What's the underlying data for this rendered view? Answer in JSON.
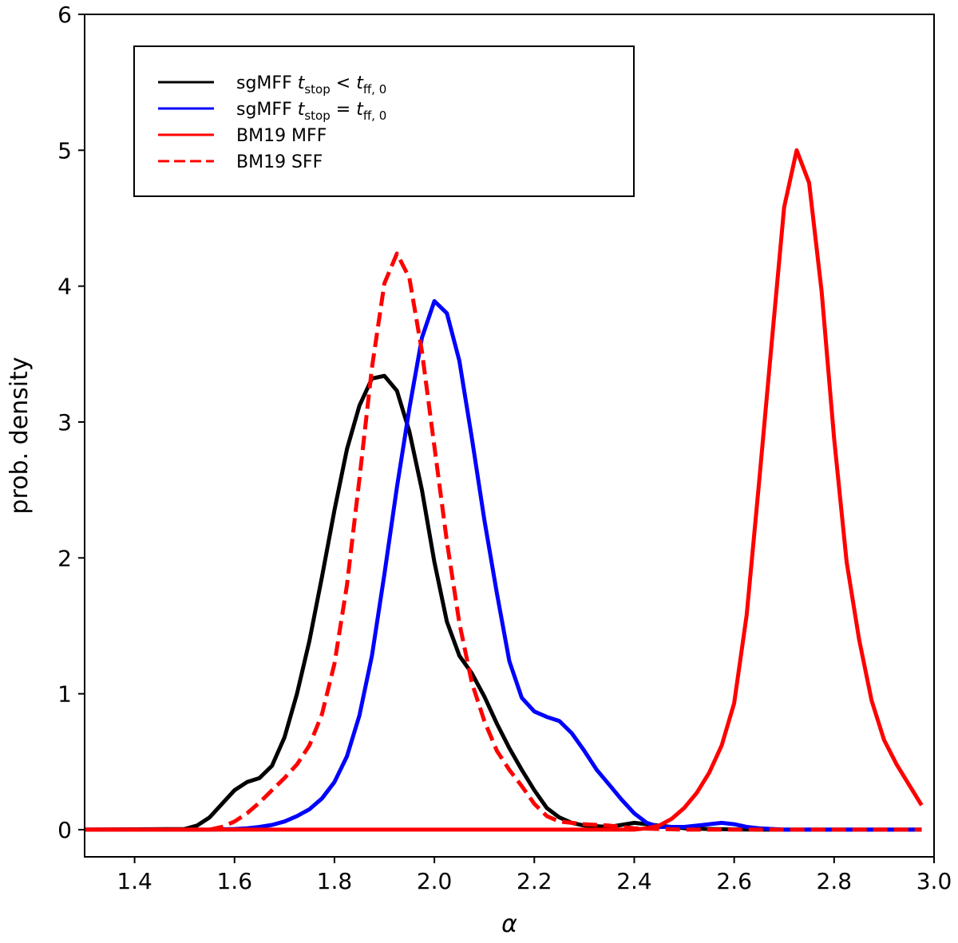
{
  "chart_data": {
    "type": "line",
    "title": "",
    "xlabel": "α",
    "ylabel": "prob. density",
    "xlim": [
      1.3,
      3.0
    ],
    "ylim": [
      -0.2,
      6.0
    ],
    "xticks": [
      1.4,
      1.6,
      1.8,
      2.0,
      2.2,
      2.4,
      2.6,
      2.8,
      3.0
    ],
    "xtick_labels": [
      "1.4",
      "1.6",
      "1.8",
      "2.0",
      "2.2",
      "2.4",
      "2.6",
      "2.8",
      "3.0"
    ],
    "yticks": [
      0,
      1,
      2,
      3,
      4,
      5,
      6
    ],
    "ytick_labels": [
      "0",
      "1",
      "2",
      "3",
      "4",
      "5",
      "6"
    ],
    "grid": false,
    "legend_position": "top-left",
    "series": [
      {
        "name": "sgMFF t_stop < t_ff,0",
        "legend_main": "sgMFF ",
        "legend_t": "t",
        "legend_sub1": "stop",
        "legend_op": " < ",
        "legend_t2": "t",
        "legend_sub2": "ff, 0",
        "color": "#000000",
        "dash": "solid",
        "x": [
          1.3,
          1.5,
          1.525,
          1.55,
          1.575,
          1.6,
          1.625,
          1.65,
          1.675,
          1.7,
          1.725,
          1.75,
          1.775,
          1.8,
          1.825,
          1.85,
          1.875,
          1.9,
          1.925,
          1.95,
          1.975,
          2.0,
          2.025,
          2.05,
          2.075,
          2.1,
          2.125,
          2.15,
          2.175,
          2.2,
          2.225,
          2.25,
          2.275,
          2.3,
          2.35,
          2.4,
          2.45,
          2.5,
          2.55,
          2.6,
          2.65,
          2.7,
          2.8,
          2.9,
          2.975
        ],
        "y": [
          0,
          0.005,
          0.03,
          0.09,
          0.19,
          0.29,
          0.35,
          0.38,
          0.47,
          0.68,
          1.0,
          1.39,
          1.86,
          2.35,
          2.8,
          3.12,
          3.32,
          3.34,
          3.23,
          2.93,
          2.5,
          1.97,
          1.53,
          1.28,
          1.15,
          0.98,
          0.78,
          0.6,
          0.44,
          0.29,
          0.16,
          0.09,
          0.05,
          0.03,
          0.02,
          0.05,
          0.03,
          0.01,
          0.005,
          0.002,
          0.0,
          0,
          0,
          0,
          0
        ]
      },
      {
        "name": "sgMFF t_stop = t_ff,0",
        "legend_main": "sgMFF ",
        "legend_t": "t",
        "legend_sub1": "stop",
        "legend_op": " = ",
        "legend_t2": "t",
        "legend_sub2": "ff, 0",
        "color": "#0000ff",
        "dash": "solid",
        "x": [
          1.3,
          1.55,
          1.6,
          1.625,
          1.65,
          1.675,
          1.7,
          1.725,
          1.75,
          1.775,
          1.8,
          1.825,
          1.85,
          1.875,
          1.9,
          1.925,
          1.95,
          1.975,
          2.0,
          2.025,
          2.05,
          2.075,
          2.1,
          2.125,
          2.15,
          2.175,
          2.2,
          2.225,
          2.25,
          2.275,
          2.3,
          2.325,
          2.35,
          2.375,
          2.4,
          2.425,
          2.45,
          2.475,
          2.5,
          2.525,
          2.55,
          2.575,
          2.6,
          2.625,
          2.65,
          2.7,
          2.8,
          2.9,
          2.975
        ],
        "y": [
          0,
          0,
          0.005,
          0.01,
          0.02,
          0.035,
          0.06,
          0.1,
          0.15,
          0.23,
          0.35,
          0.54,
          0.84,
          1.28,
          1.88,
          2.52,
          3.1,
          3.62,
          3.89,
          3.8,
          3.45,
          2.88,
          2.28,
          1.74,
          1.24,
          0.97,
          0.87,
          0.83,
          0.8,
          0.71,
          0.58,
          0.44,
          0.33,
          0.22,
          0.12,
          0.05,
          0.02,
          0.02,
          0.02,
          0.03,
          0.04,
          0.05,
          0.04,
          0.02,
          0.01,
          0.0,
          0,
          0,
          0
        ]
      },
      {
        "name": "BM19 MFF",
        "legend_main": "BM19 MFF",
        "color": "#ff0000",
        "dash": "solid",
        "x": [
          1.3,
          2.4,
          2.425,
          2.45,
          2.475,
          2.5,
          2.525,
          2.55,
          2.575,
          2.6,
          2.625,
          2.65,
          2.675,
          2.7,
          2.725,
          2.75,
          2.775,
          2.8,
          2.825,
          2.85,
          2.875,
          2.9,
          2.925,
          2.95,
          2.975
        ],
        "y": [
          0,
          0.0,
          0.01,
          0.03,
          0.08,
          0.16,
          0.27,
          0.42,
          0.62,
          0.93,
          1.58,
          2.56,
          3.58,
          4.58,
          5.0,
          4.76,
          3.96,
          2.88,
          1.97,
          1.4,
          0.95,
          0.66,
          0.48,
          0.33,
          0.18
        ]
      },
      {
        "name": "BM19 SFF",
        "legend_main": "BM19 SFF",
        "color": "#ff0000",
        "dash": "dashed",
        "x": [
          1.3,
          1.5,
          1.55,
          1.575,
          1.6,
          1.625,
          1.65,
          1.675,
          1.7,
          1.725,
          1.75,
          1.775,
          1.8,
          1.825,
          1.85,
          1.875,
          1.9,
          1.925,
          1.95,
          1.975,
          2.0,
          2.025,
          2.05,
          2.075,
          2.1,
          2.125,
          2.15,
          2.175,
          2.2,
          2.225,
          2.25,
          2.275,
          2.3,
          2.35,
          2.4,
          2.45,
          2.5,
          2.55,
          2.6,
          2.65,
          2.7,
          2.8,
          2.9,
          2.975
        ],
        "y": [
          0,
          0,
          0.0,
          0.02,
          0.06,
          0.12,
          0.2,
          0.29,
          0.38,
          0.48,
          0.62,
          0.85,
          1.22,
          1.8,
          2.58,
          3.4,
          4.02,
          4.24,
          4.06,
          3.52,
          2.82,
          2.12,
          1.52,
          1.08,
          0.8,
          0.58,
          0.44,
          0.32,
          0.19,
          0.1,
          0.06,
          0.05,
          0.04,
          0.03,
          0.01,
          0.005,
          0.0,
          0,
          0,
          0,
          0,
          0,
          0,
          0
        ]
      }
    ]
  }
}
